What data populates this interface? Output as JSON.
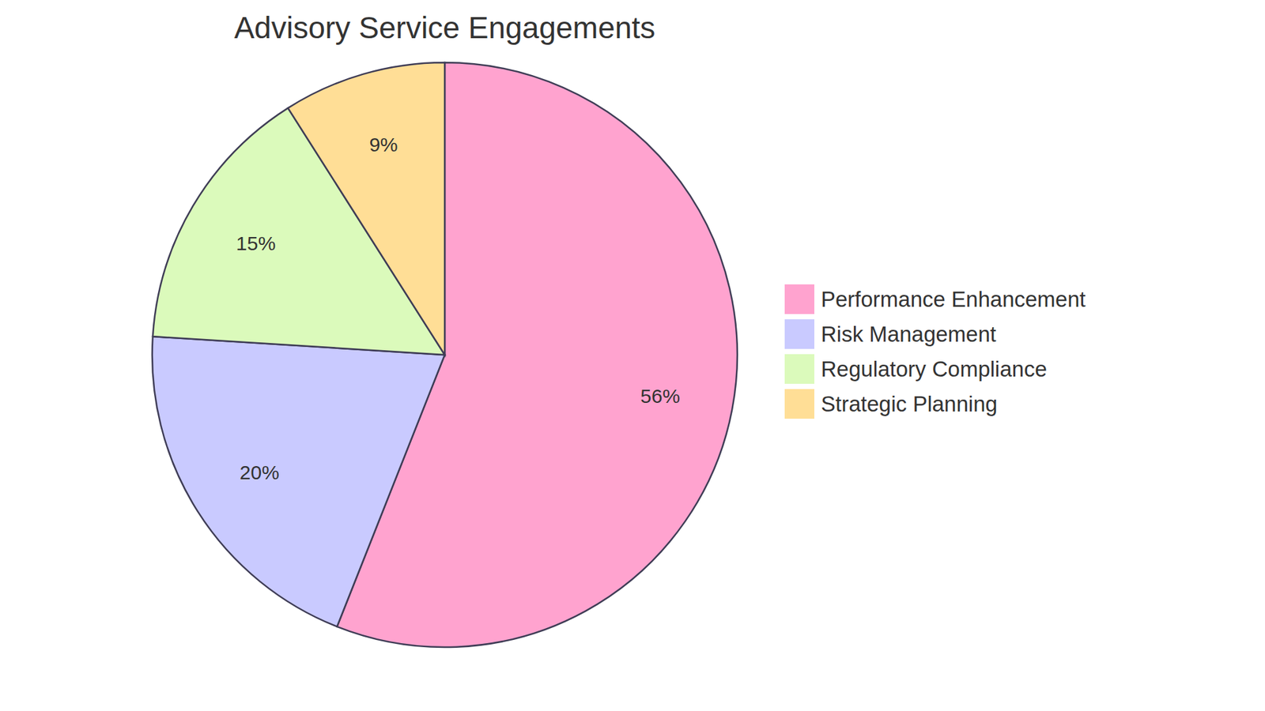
{
  "chart_data": {
    "type": "pie",
    "title": "Advisory Service Engagements",
    "categories": [
      "Performance Enhancement",
      "Risk Management",
      "Regulatory Compliance",
      "Strategic Planning"
    ],
    "values": [
      56,
      20,
      15,
      9
    ],
    "value_labels": [
      "56%",
      "20%",
      "15%",
      "9%"
    ],
    "colors": [
      "#FFA3CF",
      "#C9CAFF",
      "#DBFABB",
      "#FFDE96"
    ],
    "data_labels": true,
    "legend": "right"
  }
}
